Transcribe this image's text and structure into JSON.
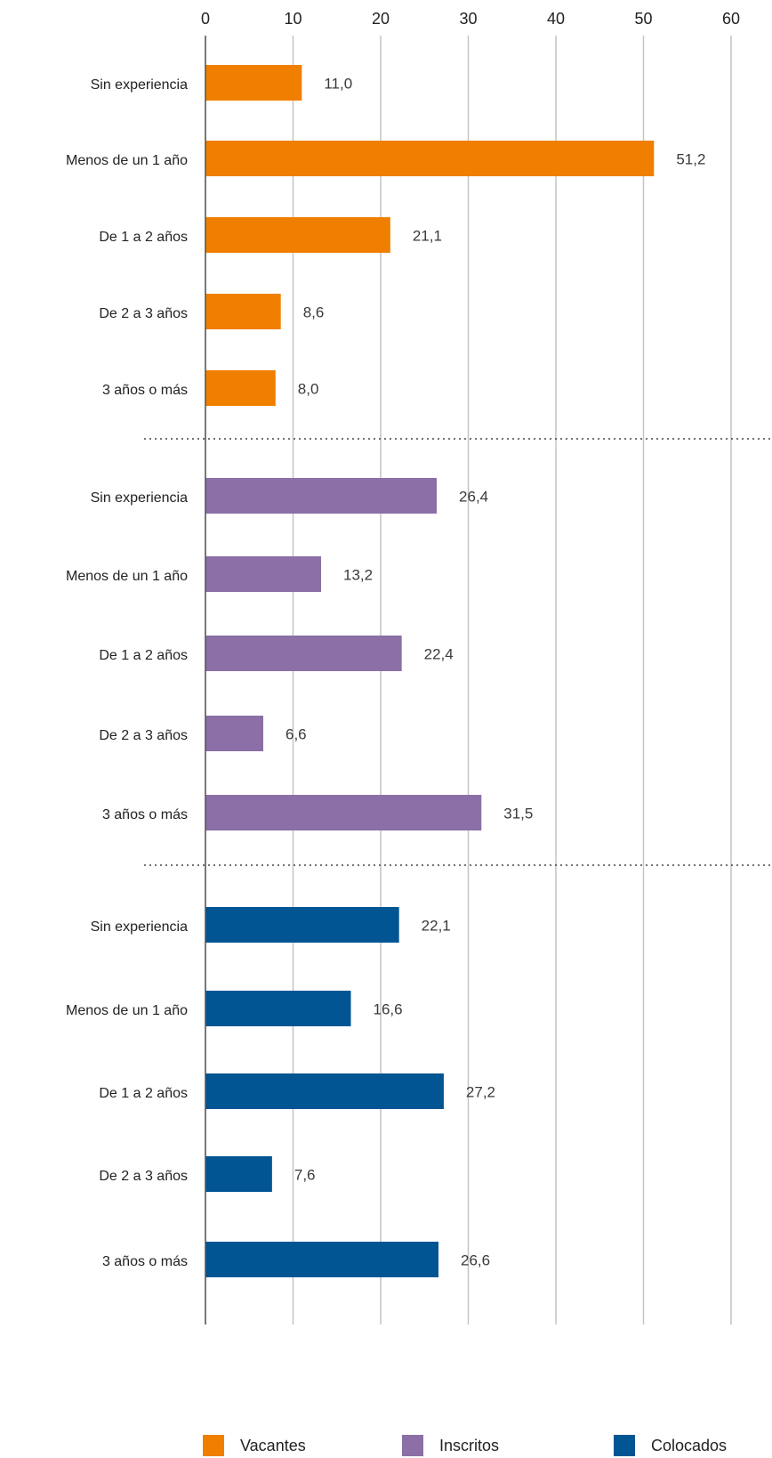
{
  "chart_data": {
    "type": "bar",
    "orientation": "horizontal",
    "categories": [
      "Sin experiencia",
      "Menos de un 1 año",
      "De 1 a 2 años",
      "De 2 a 3 años",
      "3 años o más"
    ],
    "series": [
      {
        "name": "Vacantes",
        "color": "#f07f00",
        "values": [
          11.0,
          51.2,
          21.1,
          8.6,
          8.0
        ],
        "value_labels": [
          "11,0",
          "51,2",
          "21,1",
          "8,6",
          "8,0"
        ]
      },
      {
        "name": "Inscritos",
        "color": "#8b6fa6",
        "values": [
          26.4,
          13.2,
          22.4,
          6.6,
          31.5
        ],
        "value_labels": [
          "26,4",
          "13,2",
          "22,4",
          "6,6",
          "31,5"
        ]
      },
      {
        "name": "Colocados",
        "color": "#005592",
        "values": [
          22.1,
          16.6,
          27.2,
          7.6,
          26.6
        ],
        "value_labels": [
          "22,1",
          "16,6",
          "27,2",
          "7,6",
          "26,6"
        ]
      }
    ],
    "xlim": [
      0,
      60
    ],
    "xticks": [
      0,
      10,
      20,
      30,
      40,
      50,
      60
    ],
    "grid": true,
    "legend": "bottom"
  }
}
